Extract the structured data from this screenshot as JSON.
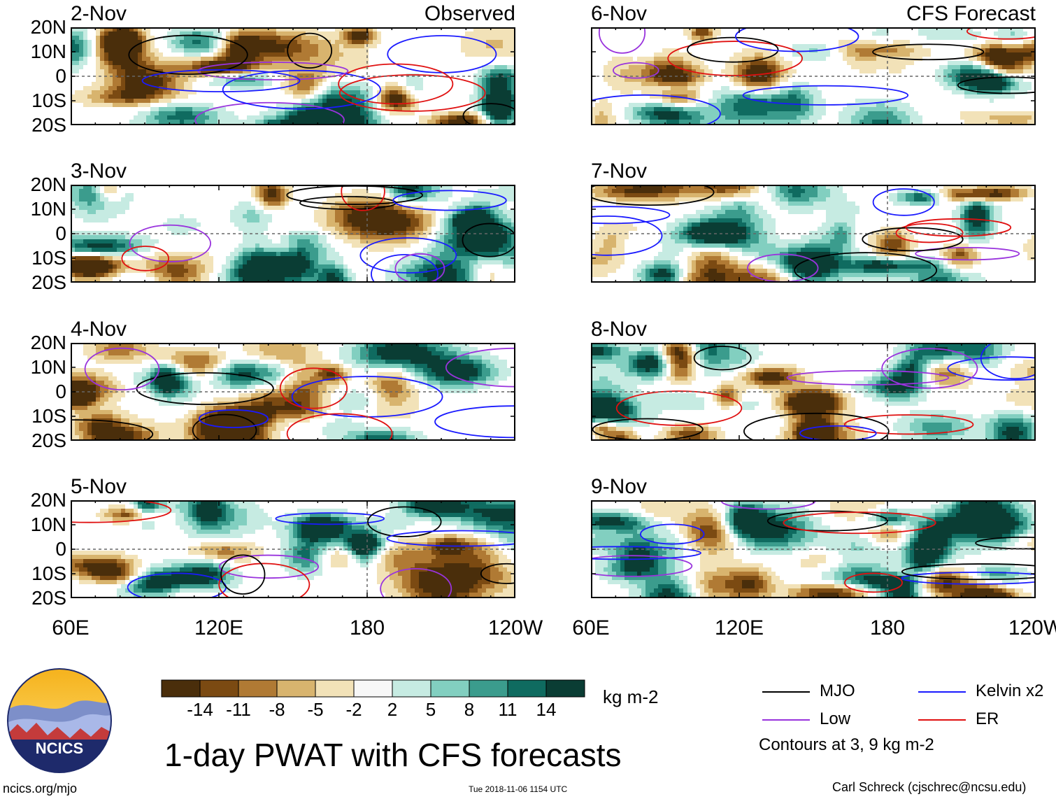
{
  "chart_data": {
    "type": "heatmap",
    "title": "1-day PWAT with CFS forecasts",
    "columns": [
      {
        "header": "Observed",
        "panels": [
          "2-Nov",
          "3-Nov",
          "4-Nov",
          "5-Nov"
        ]
      },
      {
        "header": "CFS Forecast",
        "panels": [
          "6-Nov",
          "7-Nov",
          "8-Nov",
          "9-Nov"
        ]
      }
    ],
    "lat_ticks": [
      "20N",
      "10N",
      "0",
      "10S",
      "20S"
    ],
    "lon_ticks": [
      "60E",
      "120E",
      "180",
      "120W"
    ],
    "lat_range": [
      -20,
      20
    ],
    "lon_range": [
      60,
      240
    ],
    "colorbar": {
      "unit": "kg m-2",
      "tick_labels": [
        "-14",
        "-11",
        "-8",
        "-5",
        "-2",
        "2",
        "5",
        "8",
        "11",
        "14"
      ],
      "colors": [
        "#4a2e0b",
        "#7b4a12",
        "#b07a34",
        "#d8b46e",
        "#f2e2b8",
        "#f7f7f7",
        "#c6ebe2",
        "#82cfc0",
        "#3b9c8d",
        "#0f6b60",
        "#0a3d34"
      ]
    },
    "contour_legend": [
      {
        "name": "MJO",
        "color": "#000000"
      },
      {
        "name": "Kelvin x2",
        "color": "#1a1aff"
      },
      {
        "name": "Low",
        "color": "#9933dd"
      },
      {
        "name": "ER",
        "color": "#e01010"
      }
    ],
    "contour_note": "Contours at 3, 9 kg m-2"
  },
  "logo": {
    "text": "NCICS"
  },
  "footer": {
    "left": "ncics.org/mjo",
    "center": "Tue 2018-11-06 1154 UTC",
    "right": "Carl Schreck (cjschrec@ncsu.edu)"
  }
}
